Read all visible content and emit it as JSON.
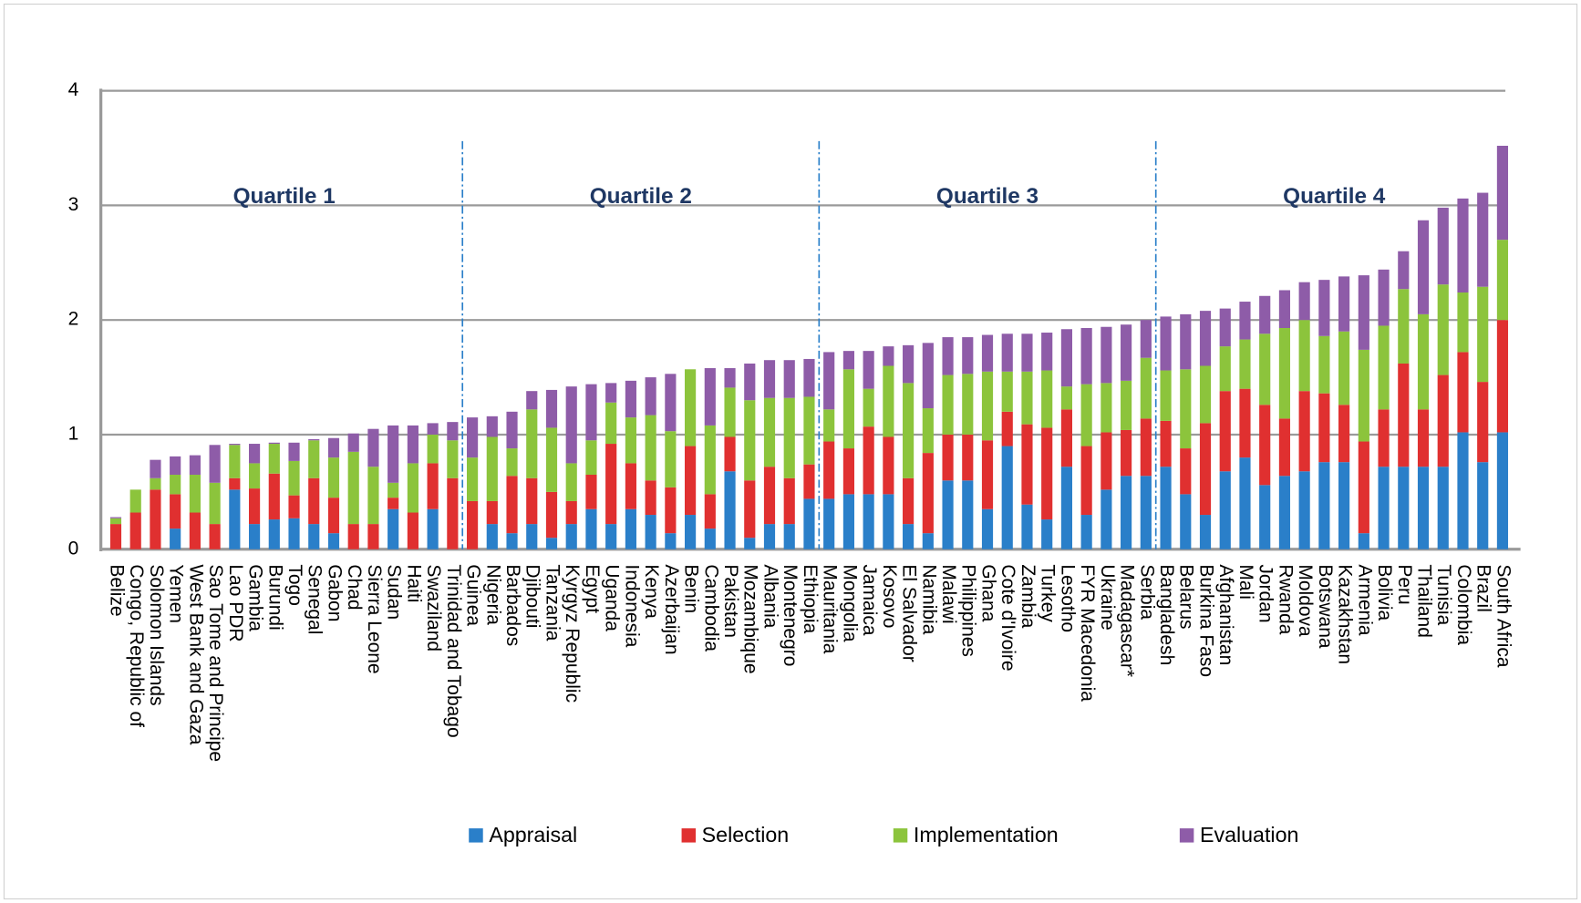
{
  "chart_data": {
    "type": "stacked_bar",
    "categories": [
      "Belize",
      "Congo, Republic of",
      "Solomon Islands",
      "Yemen",
      "West Bank and Gaza",
      "Sao Tome and Principe",
      "Lao PDR",
      "Gambia",
      "Burundi",
      "Togo",
      "Senegal",
      "Gabon",
      "Chad",
      "Sierra Leone",
      "Sudan",
      "Haiti",
      "Swaziland",
      "Trinidad and Tobago",
      "Guinea",
      "Nigeria",
      "Barbados",
      "Djibouti",
      "Tanzania",
      "Kyrgyz Republic",
      "Egypt",
      "Uganda",
      "Indonesia",
      "Kenya",
      "Azerbaijan",
      "Benin",
      "Cambodia",
      "Pakistan",
      "Mozambique",
      "Albania",
      "Montenegro",
      "Ethiopia",
      "Mauritania",
      "Mongolia",
      "Jamaica",
      "Kosovo",
      "El Salvador",
      "Namibia",
      "Malawi",
      "Philippines",
      "Ghana",
      "Cote d'Ivoire",
      "Zambia",
      "Turkey",
      "Lesotho",
      "FYR Macedonia",
      "Ukraine",
      "Madagascar*",
      "Serbia",
      "Bangladesh",
      "Belarus",
      "Burkina Faso",
      "Afghanistan",
      "Mali",
      "Jordan",
      "Rwanda",
      "Moldova",
      "Botswana",
      "Kazakhstan",
      "Armenia",
      "Bolivia",
      "Peru",
      "Thailand",
      "Tunisia",
      "Colombia",
      "Brazil",
      "South Africa"
    ],
    "series": [
      {
        "name": "Appraisal",
        "color": "#2a7fc9",
        "values": [
          0,
          0,
          0,
          0.18,
          0,
          0,
          0.52,
          0.22,
          0.26,
          0.27,
          0.22,
          0.14,
          0,
          0,
          0.35,
          0,
          0.35,
          0,
          0,
          0.22,
          0.14,
          0.22,
          0.1,
          0.22,
          0.35,
          0.22,
          0.35,
          0.3,
          0.14,
          0.3,
          0.18,
          0.68,
          0.1,
          0.22,
          0.22,
          0.44,
          0.44,
          0.48,
          0.48,
          0.48,
          0.22,
          0.14,
          0.6,
          0.6,
          0.35,
          0.9,
          0.39,
          0.26,
          0.72,
          0.3,
          0.52,
          0.64,
          0.64,
          0.72,
          0.48,
          0.3,
          0.68,
          0.8,
          0.56,
          0.64,
          0.68,
          0.76,
          0.76,
          0.14,
          0.72,
          0.72,
          0.72,
          0.72,
          1.02,
          0.76,
          1.02
        ]
      },
      {
        "name": "Selection",
        "color": "#e03030",
        "values": [
          0.22,
          0.32,
          0.52,
          0.3,
          0.32,
          0.22,
          0.1,
          0.31,
          0.4,
          0.2,
          0.4,
          0.31,
          0.22,
          0.22,
          0.1,
          0.32,
          0.4,
          0.62,
          0.42,
          0.2,
          0.5,
          0.4,
          0.4,
          0.2,
          0.3,
          0.7,
          0.4,
          0.3,
          0.4,
          0.6,
          0.3,
          0.3,
          0.5,
          0.5,
          0.4,
          0.3,
          0.5,
          0.4,
          0.59,
          0.5,
          0.4,
          0.7,
          0.4,
          0.4,
          0.6,
          0.3,
          0.7,
          0.8,
          0.5,
          0.6,
          0.5,
          0.4,
          0.5,
          0.4,
          0.4,
          0.8,
          0.7,
          0.6,
          0.7,
          0.5,
          0.7,
          0.6,
          0.5,
          0.8,
          0.5,
          0.9,
          0.5,
          0.8,
          0.7,
          0.7,
          0.98
        ]
      },
      {
        "name": "Implementation",
        "color": "#8cc43c",
        "values": [
          0.05,
          0.2,
          0.1,
          0.17,
          0.33,
          0.36,
          0.29,
          0.22,
          0.26,
          0.3,
          0.33,
          0.35,
          0.63,
          0.5,
          0.13,
          0.43,
          0.25,
          0.33,
          0.38,
          0.56,
          0.24,
          0.6,
          0.56,
          0.33,
          0.3,
          0.36,
          0.4,
          0.57,
          0.49,
          0.67,
          0.6,
          0.43,
          0.7,
          0.6,
          0.7,
          0.59,
          0.28,
          0.69,
          0.33,
          0.62,
          0.83,
          0.39,
          0.52,
          0.53,
          0.6,
          0.35,
          0.46,
          0.5,
          0.2,
          0.54,
          0.43,
          0.43,
          0.53,
          0.44,
          0.69,
          0.5,
          0.39,
          0.43,
          0.62,
          0.79,
          0.62,
          0.5,
          0.64,
          0.8,
          0.73,
          0.65,
          0.83,
          0.79,
          0.52,
          0.83,
          0.7
        ]
      },
      {
        "name": "Evaluation",
        "color": "#8e5ca8",
        "values": [
          0.01,
          0,
          0.16,
          0.16,
          0.17,
          0.33,
          0.01,
          0.17,
          0.01,
          0.16,
          0.01,
          0.17,
          0.16,
          0.33,
          0.5,
          0.33,
          0.1,
          0.16,
          0.35,
          0.18,
          0.32,
          0.16,
          0.33,
          0.67,
          0.49,
          0.17,
          0.32,
          0.33,
          0.5,
          0,
          0.5,
          0.17,
          0.32,
          0.33,
          0.33,
          0.33,
          0.5,
          0.16,
          0.33,
          0.17,
          0.33,
          0.57,
          0.33,
          0.32,
          0.32,
          0.33,
          0.33,
          0.33,
          0.5,
          0.49,
          0.49,
          0.49,
          0.33,
          0.47,
          0.48,
          0.48,
          0.33,
          0.33,
          0.33,
          0.33,
          0.33,
          0.49,
          0.48,
          0.65,
          0.49,
          0.33,
          0.82,
          0.67,
          0.82,
          0.82,
          0.82
        ]
      }
    ],
    "annotations": [
      "Quartile 1",
      "Quartile 2",
      "Quartile 3",
      "Quartile 4"
    ],
    "ylim": [
      0,
      4
    ],
    "yticks": [
      0,
      1,
      2,
      3,
      4
    ],
    "grid": true
  }
}
